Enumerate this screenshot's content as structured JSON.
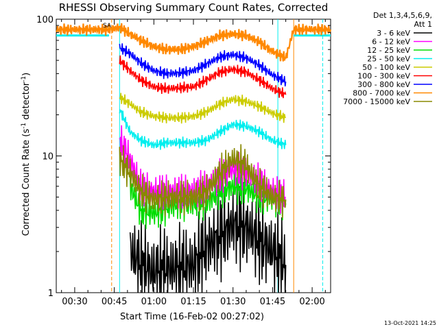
{
  "chart_data": {
    "type": "line",
    "title": "RHESSI Observing Summary Count Rates, Corrected",
    "xlabel": "Start Time (16-Feb-02 00:27:02)",
    "ylabel_main": "Corrected Count Rate (s",
    "ylabel_sup1": "-1",
    "ylabel_mid": " detector",
    "ylabel_sup2": "-1",
    "ylabel_end": ")",
    "yscale": "log",
    "ylim": [
      1,
      100
    ],
    "xlim": [
      "00:23",
      "02:07"
    ],
    "x_ticks": [
      "00:30",
      "00:45",
      "01:00",
      "01:15",
      "01:30",
      "01:45",
      "02:00"
    ],
    "y_ticks": [
      "1",
      "10",
      "100"
    ],
    "legend_header": [
      "Det 1,3,4,5,6,9,",
      "Att 1"
    ],
    "legend_placement": "right",
    "footer": "13-Oct-2021 14:25",
    "flag": "SA",
    "series": [
      {
        "name": "3 - 6 keV",
        "color": "#000000",
        "x": [
          "00:51",
          "00:55",
          "01:00",
          "01:05",
          "01:10",
          "01:15",
          "01:20",
          "01:25",
          "01:30",
          "01:35",
          "01:40",
          "01:45",
          "01:50"
        ],
        "values": [
          2.0,
          1.6,
          1.4,
          1.5,
          1.5,
          1.6,
          2.2,
          2.6,
          3.2,
          3.0,
          2.4,
          2.0,
          1.6
        ]
      },
      {
        "name": "6 - 12 keV",
        "color": "#ff00ff",
        "x": [
          "00:47",
          "00:51",
          "00:55",
          "01:00",
          "01:05",
          "01:10",
          "01:15",
          "01:20",
          "01:25",
          "01:30",
          "01:35",
          "01:40",
          "01:45",
          "01:50"
        ],
        "values": [
          13,
          9.5,
          6.0,
          5.5,
          5.5,
          5.5,
          5.5,
          6.0,
          7.0,
          8.0,
          7.5,
          6.5,
          5.5,
          5.0
        ]
      },
      {
        "name": "12 - 25 keV",
        "color": "#00dd00",
        "x": [
          "00:51",
          "00:55",
          "01:00",
          "01:05",
          "01:10",
          "01:15",
          "01:20",
          "01:25",
          "01:30",
          "01:35",
          "01:40",
          "01:45",
          "01:50"
        ],
        "values": [
          6.0,
          4.0,
          3.8,
          4.2,
          4.5,
          4.5,
          4.6,
          5.5,
          6.0,
          5.8,
          5.0,
          4.8,
          4.5
        ]
      },
      {
        "name": "25 - 50 keV",
        "color": "#00eeee",
        "x": [
          "00:47",
          "00:51",
          "00:55",
          "01:00",
          "01:05",
          "01:10",
          "01:15",
          "01:20",
          "01:25",
          "01:30",
          "01:35",
          "01:40",
          "01:45",
          "01:50"
        ],
        "values": [
          22,
          15,
          13,
          12,
          12.5,
          12.5,
          12.5,
          13,
          15,
          17,
          16.5,
          15,
          13,
          12
        ]
      },
      {
        "name": "50 - 100 keV",
        "color": "#cccc00",
        "x": [
          "00:47",
          "00:51",
          "00:55",
          "01:00",
          "01:05",
          "01:10",
          "01:15",
          "01:20",
          "01:25",
          "01:30",
          "01:35",
          "01:40",
          "01:45",
          "01:50"
        ],
        "values": [
          27,
          24,
          21,
          19.5,
          19,
          19,
          19.5,
          21,
          24,
          26,
          25,
          23,
          20.5,
          19
        ]
      },
      {
        "name": "100 - 300 keV",
        "color": "#ff0000",
        "x": [
          "00:47",
          "00:51",
          "00:55",
          "01:00",
          "01:05",
          "01:10",
          "01:15",
          "01:20",
          "01:25",
          "01:30",
          "01:35",
          "01:40",
          "01:45",
          "01:50"
        ],
        "values": [
          50,
          42,
          36,
          32,
          31,
          31.5,
          32,
          36,
          41,
          43,
          41,
          36,
          31,
          28
        ]
      },
      {
        "name": "300 - 800 keV",
        "color": "#0000ff",
        "x": [
          "00:47",
          "00:51",
          "00:55",
          "01:00",
          "01:05",
          "01:10",
          "01:15",
          "01:20",
          "01:25",
          "01:30",
          "01:35",
          "01:40",
          "01:45",
          "01:50"
        ],
        "values": [
          62,
          56,
          48,
          42,
          40,
          40.5,
          42,
          47,
          53,
          55,
          52,
          46,
          39,
          35
        ]
      },
      {
        "name": "800 - 7000 keV",
        "color": "#ff8800",
        "x": [
          "00:23",
          "00:43",
          "00:47",
          "00:51",
          "00:55",
          "01:00",
          "01:05",
          "01:10",
          "01:15",
          "01:20",
          "01:25",
          "01:30",
          "01:35",
          "01:40",
          "01:45",
          "01:50",
          "01:53",
          "02:07"
        ],
        "values": [
          84,
          84,
          87,
          78,
          70,
          63,
          60,
          60,
          63,
          69,
          76,
          78,
          76,
          68,
          58,
          52,
          84,
          84
        ]
      },
      {
        "name": "7000 - 15000 keV",
        "color": "#888800",
        "x": [
          "00:47",
          "00:51",
          "00:55",
          "01:00",
          "01:05",
          "01:10",
          "01:15",
          "01:20",
          "01:25",
          "01:30",
          "01:35",
          "01:40",
          "01:45",
          "01:50"
        ],
        "values": [
          9.5,
          7.5,
          5.5,
          4.8,
          5.0,
          5.0,
          5.0,
          5.5,
          7.5,
          9.5,
          8.5,
          6.0,
          5.0,
          4.8
        ]
      }
    ],
    "attenuator_lines": [
      {
        "x": "00:44",
        "color": "#ff8800",
        "style": "dashed"
      },
      {
        "x": "00:47",
        "color": "#00eeee",
        "style": "solid"
      },
      {
        "x": "01:47",
        "color": "#00eeee",
        "style": "solid"
      },
      {
        "x": "01:53",
        "color": "#ff8800",
        "style": "solid"
      },
      {
        "x": "02:04",
        "color": "#00eeee",
        "style": "dashed"
      }
    ],
    "cyan_band": {
      "y": 76,
      "segments": [
        [
          "00:23",
          "00:43"
        ],
        [
          "01:53",
          "02:07"
        ]
      ]
    }
  }
}
